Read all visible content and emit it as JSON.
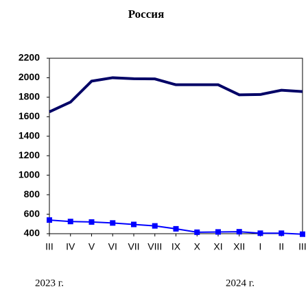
{
  "chart_data": {
    "type": "line",
    "title": "Россия",
    "categories": [
      "III",
      "IV",
      "V",
      "VI",
      "VII",
      "VIII",
      "IX",
      "X",
      "XI",
      "XII",
      "I",
      "II",
      "III"
    ],
    "series": [
      {
        "color": "#000066",
        "values": [
          1650,
          1750,
          1965,
          2000,
          1990,
          1988,
          1928,
          1928,
          1928,
          1825,
          1828,
          1872,
          1858
        ]
      },
      {
        "color": "#0000ff",
        "marker": "square",
        "values": [
          540,
          525,
          520,
          510,
          495,
          480,
          450,
          415,
          418,
          420,
          405,
          405,
          395
        ]
      }
    ],
    "ylim": [
      400,
      2200
    ],
    "yticks": [
      400,
      600,
      800,
      1000,
      1200,
      1400,
      1600,
      1800,
      2000,
      2200
    ],
    "annotations": [
      "2023 г.",
      "2024 г."
    ]
  }
}
